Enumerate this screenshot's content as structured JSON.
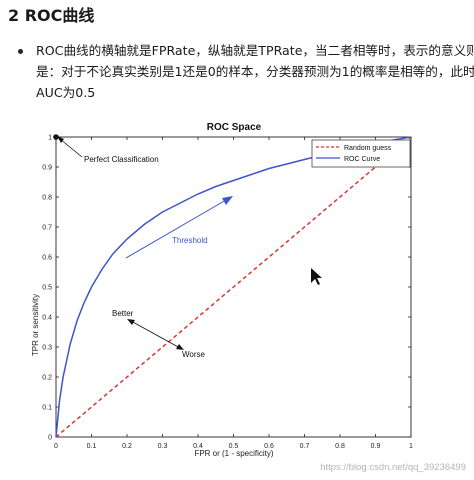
{
  "heading": "2 ROC曲线",
  "bullet_lines": [
    "ROC曲线的横轴就是FPRate，纵轴就是TPRate，当二者相等时，表示的意义则",
    "是：对于不论真实类别是1还是0的样本，分类器预测为1的概率是相等的，此时",
    "AUC为0.5"
  ],
  "chart_data": {
    "type": "line",
    "title": "ROC Space",
    "xlabel": "FPR or (1 - specificity)",
    "ylabel": "TPR or sensitivity",
    "xlim": [
      0,
      1
    ],
    "ylim": [
      0,
      1
    ],
    "x_ticks": [
      "0",
      "0.1",
      "0.2",
      "0.3",
      "0.4",
      "0.5",
      "0.6",
      "0.7",
      "0.8",
      "0.9",
      "1"
    ],
    "y_ticks": [
      "0",
      "0.1",
      "0.2",
      "0.3",
      "0.4",
      "0.5",
      "0.6",
      "0.7",
      "0.8",
      "0.9",
      "1"
    ],
    "grid": false,
    "legend_position": "top-right",
    "series": [
      {
        "name": "Random guess",
        "style": "dashed",
        "color": "#e0332f",
        "x": [
          0,
          1
        ],
        "y": [
          0,
          1
        ]
      },
      {
        "name": "ROC Curve",
        "style": "solid",
        "color": "#3d55c8",
        "x": [
          0,
          0.01,
          0.02,
          0.04,
          0.06,
          0.08,
          0.1,
          0.13,
          0.16,
          0.2,
          0.25,
          0.3,
          0.35,
          0.4,
          0.45,
          0.5,
          0.55,
          0.6,
          0.65,
          0.7,
          0.75,
          0.8,
          0.85,
          0.9,
          0.95,
          1.0
        ],
        "y": [
          0,
          0.12,
          0.2,
          0.31,
          0.39,
          0.45,
          0.5,
          0.56,
          0.61,
          0.66,
          0.71,
          0.75,
          0.78,
          0.81,
          0.835,
          0.855,
          0.875,
          0.895,
          0.91,
          0.925,
          0.94,
          0.955,
          0.965,
          0.978,
          0.99,
          1.0
        ]
      }
    ],
    "annotations": [
      {
        "text": "Perfect Classification",
        "point": [
          0,
          1
        ]
      },
      {
        "text": "Threshold",
        "color": "#3d55c8"
      },
      {
        "text": "Better"
      },
      {
        "text": "Worse"
      }
    ]
  },
  "watermark": "https://blog.csdn.net/qq_39236499"
}
